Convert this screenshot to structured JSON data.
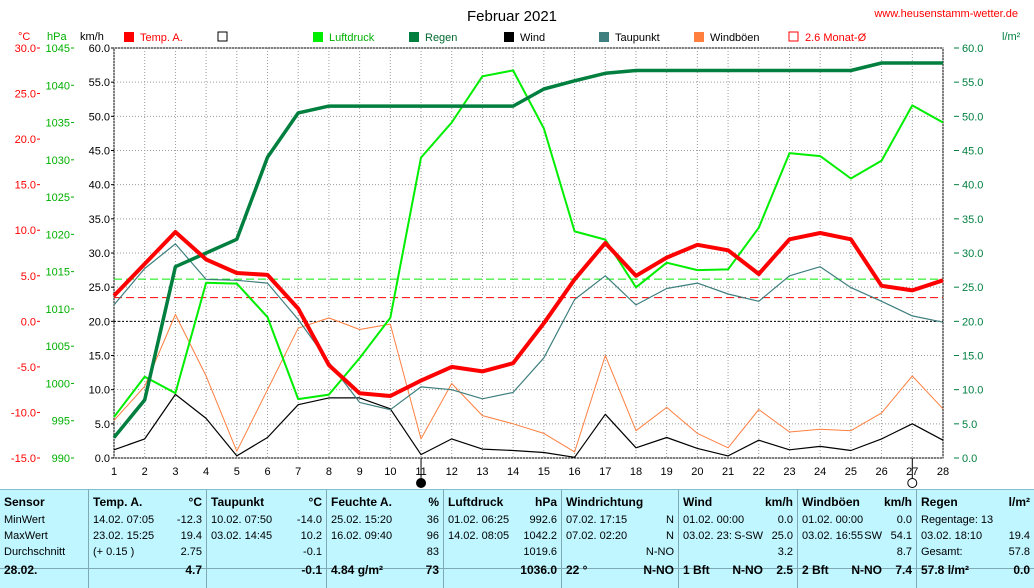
{
  "chart_data": {
    "type": "line",
    "title": "Februar 2021",
    "source": "www.heusenstamm-wetter.de",
    "axis_labels": {
      "temp": "°C",
      "pressure": "hPa",
      "speed": "km/h",
      "rain": "l/m²"
    },
    "x": [
      1,
      2,
      3,
      4,
      5,
      6,
      7,
      8,
      9,
      10,
      11,
      12,
      13,
      14,
      15,
      16,
      17,
      18,
      19,
      20,
      21,
      22,
      23,
      24,
      25,
      26,
      27,
      28
    ],
    "temp_axis": {
      "min": -15,
      "max": 30,
      "ticks": [
        "30.0",
        "25.0",
        "20.0",
        "15.0",
        "10.0",
        "5.0",
        "0.0",
        "-5.0",
        "-10.0",
        "-15.0"
      ]
    },
    "pressure_axis": {
      "min": 990,
      "max": 1045,
      "ticks": [
        "1045",
        "1040",
        "1035",
        "1030",
        "1025",
        "1020",
        "1015",
        "1010",
        "1005",
        "1000",
        "995",
        "990"
      ]
    },
    "speed_axis": {
      "min": 0,
      "max": 60,
      "ticks": [
        "60.0",
        "55.0",
        "50.0",
        "45.0",
        "40.0",
        "35.0",
        "30.0",
        "25.0",
        "20.0",
        "15.0",
        "10.0",
        "5.0",
        "0.0"
      ]
    },
    "rain_axis": {
      "min": 0,
      "max": 60,
      "ticks": [
        "60.0",
        "55.0",
        "50.0",
        "45.0",
        "40.0",
        "35.0",
        "30.0",
        "25.0",
        "20.0",
        "15.0",
        "10.0",
        "5.0",
        "0.0"
      ]
    },
    "series": [
      {
        "name": "Temp. A.",
        "color": "#ff0000",
        "axis": "temp",
        "values": [
          2.8,
          6.3,
          9.8,
          6.8,
          5.3,
          5.1,
          1.4,
          -4.8,
          -7.9,
          -8.2,
          -6.5,
          -5.0,
          -5.5,
          -4.6,
          -0.2,
          4.6,
          8.6,
          5.0,
          7.0,
          8.4,
          7.8,
          5.2,
          9.0,
          9.7,
          9.0,
          3.9,
          3.4,
          4.5
        ]
      },
      {
        "name": "Luftdruck",
        "color": "#00ee00",
        "axis": "pressure",
        "values": [
          995.5,
          1000.9,
          998.7,
          1013.5,
          1013.4,
          1008.9,
          997.9,
          998.5,
          1003.4,
          1008.8,
          1030.3,
          1035.0,
          1041.2,
          1042.0,
          1034.2,
          1020.4,
          1019.3,
          1012.9,
          1016.2,
          1015.2,
          1015.3,
          1020.9,
          1030.9,
          1030.5,
          1027.5,
          1029.9,
          1037.3,
          1035.0
        ]
      },
      {
        "name": "Regen",
        "color": "#007f3f",
        "axis": "rain",
        "values": [
          3.0,
          8.5,
          28.0,
          30.0,
          32.0,
          44.0,
          50.5,
          51.5,
          51.5,
          51.5,
          51.5,
          51.5,
          51.5,
          51.5,
          54.0,
          55.2,
          56.3,
          56.7,
          56.7,
          56.7,
          56.7,
          56.7,
          56.7,
          56.7,
          56.7,
          57.8,
          57.8,
          57.8
        ]
      },
      {
        "name": "Wind",
        "color": "#000000",
        "axis": "speed",
        "values": [
          1.2,
          2.8,
          9.3,
          5.8,
          0.3,
          3.0,
          7.8,
          8.8,
          8.8,
          7.2,
          0.5,
          2.8,
          1.3,
          1.1,
          0.8,
          0.1,
          6.4,
          1.5,
          3.0,
          1.4,
          0.3,
          2.6,
          1.2,
          1.7,
          1.1,
          2.8,
          5.0,
          2.6
        ]
      },
      {
        "name": "Taupunkt",
        "color": "#3f7f7f",
        "axis": "temp",
        "values": [
          1.8,
          5.8,
          8.5,
          4.6,
          4.5,
          4.2,
          0.2,
          -4.5,
          -8.9,
          -9.7,
          -7.2,
          -7.5,
          -8.5,
          -7.8,
          -4.0,
          2.4,
          5.0,
          1.8,
          3.6,
          4.2,
          3.0,
          2.2,
          5.0,
          6.0,
          3.7,
          2.2,
          0.6,
          -0.1
        ]
      },
      {
        "name": "Windböen",
        "color": "#ff7f3f",
        "axis": "speed",
        "values": [
          5.5,
          10.5,
          21.0,
          12.0,
          1.0,
          10.0,
          19.0,
          20.5,
          18.8,
          19.6,
          2.8,
          10.9,
          6.2,
          5.0,
          3.6,
          0.9,
          15.0,
          4.0,
          7.4,
          3.6,
          1.5,
          7.1,
          3.8,
          4.2,
          4.0,
          6.6,
          12.0,
          7.2
        ]
      }
    ],
    "reference_lines": [
      {
        "name": "2.6 Monat-Ø",
        "color": "#ff0000",
        "axis": "temp",
        "value": 2.6,
        "style": "dashed"
      },
      {
        "color": "#00ee00",
        "axis": "pressure",
        "value": 1014.0,
        "style": "dashed"
      },
      {
        "color": "#000000",
        "axis": "temp",
        "value": 0.0,
        "style": "dashed"
      }
    ],
    "legend": [
      {
        "name": "Temp. A.",
        "color": "#ff0000",
        "label_color": "#ff0000"
      },
      {
        "name": "",
        "color": "#ffffff",
        "label_color": "#000000"
      },
      {
        "name": "Luftdruck",
        "color": "#00ee00",
        "label_color": "#00b000"
      },
      {
        "name": "Regen",
        "color": "#007f3f",
        "label_color": "#006a30"
      },
      {
        "name": "Wind",
        "color": "#000000",
        "label_color": "#000000"
      },
      {
        "name": "Taupunkt",
        "color": "#3f7f7f",
        "label_color": "#000000"
      },
      {
        "name": "Windböen",
        "color": "#ff7f3f",
        "label_color": "#000000"
      },
      {
        "name": "2.6 Monat-Ø",
        "color": "#ff0000",
        "label_color": "#ff0000",
        "hollow": true
      }
    ],
    "markers": [
      {
        "x": 11.0,
        "symbol": "filled-circle"
      },
      {
        "x": 27.0,
        "symbol": "hollow-circle"
      }
    ]
  },
  "table": {
    "columns": [
      {
        "id": "sensor",
        "rows": [
          [
            "Sensor",
            "",
            ""
          ],
          [
            "MinWert",
            "",
            ""
          ],
          [
            "MaxWert",
            "",
            ""
          ],
          [
            "Durchschnitt",
            "",
            ""
          ],
          [
            "28.02.",
            "",
            ""
          ]
        ]
      },
      {
        "id": "temp",
        "rows": [
          [
            "Temp. A.",
            "",
            "°C"
          ],
          [
            "14.02.  07:05",
            "",
            "-12.3"
          ],
          [
            "23.02.  15:25",
            "",
            "19.4"
          ],
          [
            "(+ 0.15 )",
            "",
            "2.75"
          ],
          [
            "",
            "",
            "4.7"
          ]
        ]
      },
      {
        "id": "taupunkt",
        "rows": [
          [
            "Taupunkt",
            "",
            "°C"
          ],
          [
            "10.02.  07:50",
            "",
            "-14.0"
          ],
          [
            "03.02.  14:45",
            "",
            "10.2"
          ],
          [
            "",
            "",
            "-0.1"
          ],
          [
            "",
            "",
            "-0.1"
          ]
        ]
      },
      {
        "id": "feuchte",
        "rows": [
          [
            "Feuchte A.",
            "",
            "%"
          ],
          [
            "25.02.  15:20",
            "",
            "36"
          ],
          [
            "16.02.  09:40",
            "",
            "96"
          ],
          [
            "",
            "",
            "83"
          ],
          [
            "4.84 g/m²",
            "",
            "73"
          ]
        ]
      },
      {
        "id": "luftdruck",
        "rows": [
          [
            "Luftdruck",
            "",
            "hPa"
          ],
          [
            "01.02.  06:25",
            "",
            "992.6"
          ],
          [
            "14.02.  08:05",
            "",
            "1042.2"
          ],
          [
            "",
            "",
            "1019.6"
          ],
          [
            "",
            "",
            "1036.0"
          ]
        ]
      },
      {
        "id": "windrichtung",
        "rows": [
          [
            "Windrichtung",
            "",
            ""
          ],
          [
            "07.02.  17:15",
            "",
            "N"
          ],
          [
            "07.02.  02:20",
            "",
            "N"
          ],
          [
            "",
            "",
            "N-NO"
          ],
          [
            "22 °",
            "",
            "N-NO"
          ]
        ]
      },
      {
        "id": "wind",
        "rows": [
          [
            "Wind",
            "",
            "km/h"
          ],
          [
            "01.02.  00:00",
            "",
            "0.0"
          ],
          [
            "03.02.  23:",
            "S-SW",
            "25.0"
          ],
          [
            "",
            "",
            "3.2"
          ],
          [
            "1 Bft",
            "N-NO",
            "2.5"
          ]
        ]
      },
      {
        "id": "windboeen",
        "rows": [
          [
            "Windböen",
            "",
            "km/h"
          ],
          [
            "01.02.  00:00",
            "",
            "0.0"
          ],
          [
            "03.02.  16:55",
            "SW",
            "54.1"
          ],
          [
            "",
            "",
            "8.7"
          ],
          [
            "2 Bft",
            "N-NO",
            "7.4"
          ]
        ]
      },
      {
        "id": "regen",
        "rows": [
          [
            "Regen",
            "",
            "l/m²"
          ],
          [
            "Regentage: 13",
            "",
            ""
          ],
          [
            "03.02.  18:10",
            "",
            "19.4"
          ],
          [
            "Gesamt:",
            "",
            "57.8"
          ],
          [
            "57.8 l/m²",
            "",
            "0.0"
          ]
        ]
      }
    ]
  }
}
